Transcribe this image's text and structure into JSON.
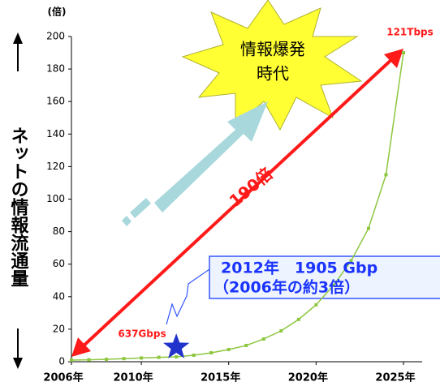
{
  "chart_data": {
    "type": "line",
    "y_unit": "(倍)",
    "ylabel": "ネットの情報流通量",
    "x": [
      2006,
      2007,
      2008,
      2009,
      2010,
      2011,
      2012,
      2013,
      2014,
      2015,
      2016,
      2017,
      2018,
      2019,
      2020,
      2021,
      2022,
      2023,
      2024,
      2025
    ],
    "series": [
      {
        "color": "#8dc63f",
        "values": [
          1,
          1.2,
          1.5,
          1.9,
          2.3,
          2.7,
          3,
          4,
          5.5,
          7.5,
          10,
          14,
          19,
          26,
          35,
          47,
          62,
          82,
          115,
          190
        ]
      }
    ],
    "xlim": [
      2006,
      2025
    ],
    "xticks": [
      {
        "value": 2006,
        "label": "2006年"
      },
      {
        "value": 2010,
        "label": "2010年"
      },
      {
        "value": 2015,
        "label": "2015年"
      },
      {
        "value": 2020,
        "label": "2020年"
      },
      {
        "value": 2025,
        "label": "2025年"
      }
    ],
    "ylim": [
      0,
      200
    ],
    "yticks": [
      0,
      20,
      40,
      60,
      80,
      100,
      120,
      140,
      160,
      180,
      200
    ],
    "annotations": [
      "121Tbps",
      "637Gbps",
      "190倍",
      "情報爆発",
      "時代",
      "2012年　1905 Gbp",
      "（2006年の約3倍）"
    ]
  }
}
